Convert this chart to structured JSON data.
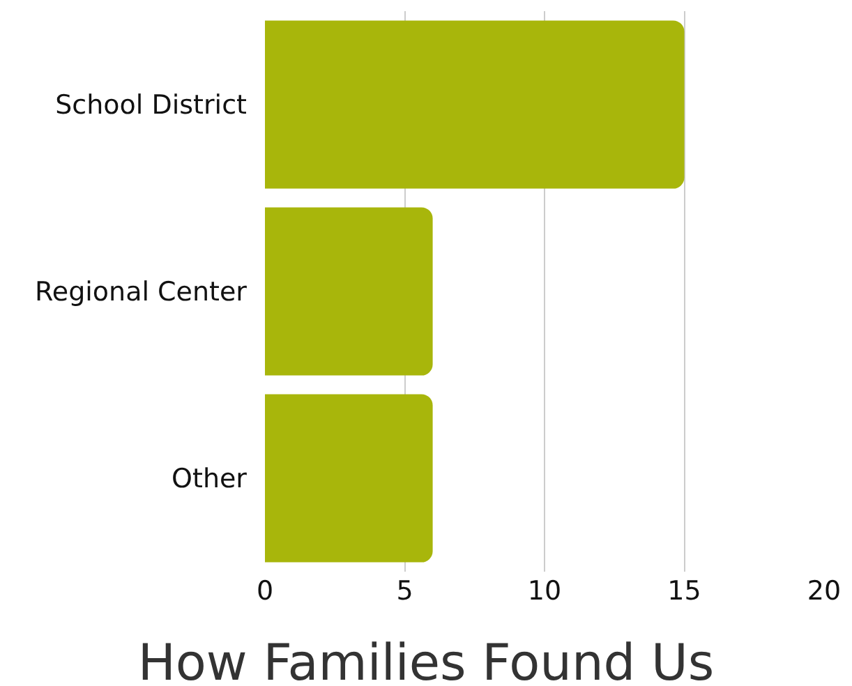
{
  "chart_data": {
    "type": "bar",
    "orientation": "horizontal",
    "title": "How Families Found Us",
    "categories": [
      "School District",
      "Regional Center",
      "Other"
    ],
    "values": [
      15,
      6,
      6
    ],
    "color": "#a8b60b",
    "xlim": [
      0,
      20
    ],
    "xticks": [
      0,
      5,
      10,
      15,
      20
    ],
    "grid": "x"
  }
}
